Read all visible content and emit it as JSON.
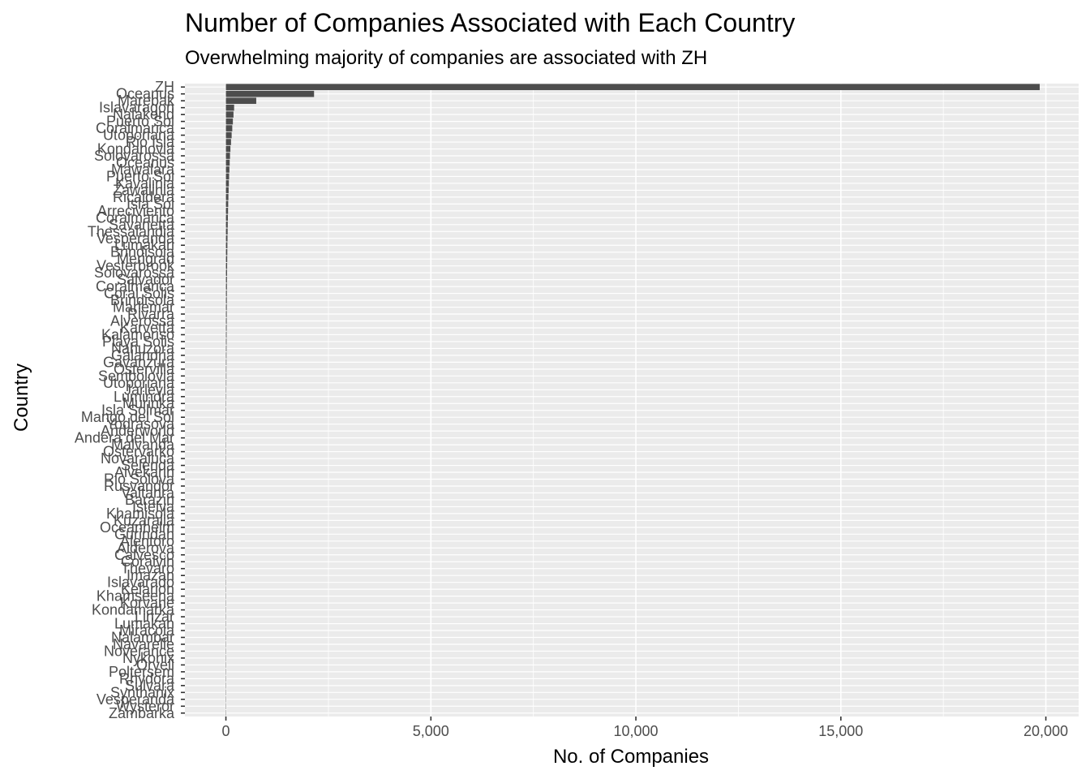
{
  "chart_data": {
    "type": "bar",
    "orientation": "horizontal",
    "title": "Number of Companies Associated with Each Country",
    "subtitle": "Overwhelming majority of companies are associated with ZH",
    "xlabel": "No. of Companies",
    "ylabel": "Country",
    "xlim": [
      -1000,
      20800
    ],
    "x_ticks": [
      0,
      5000,
      10000,
      15000,
      20000
    ],
    "x_tick_labels": [
      "0",
      "5,000",
      "10,000",
      "15,000",
      "20,000"
    ],
    "grid": true,
    "bar_color": "#4d4d4d",
    "panel_color": "#ebebeb",
    "categories": [
      "ZH",
      "Oceanus",
      "Marebak",
      "Islavaragon",
      "Nalakond",
      "Puerto Sol",
      "Coralmarica",
      "Utoporiana",
      "Rio Isla",
      "Kondanovia",
      "Solovarossa",
      "Oceanus",
      "Mawalara",
      "Puerto Sol",
      "Kavalinia",
      "Zawalinia",
      "Ricaldera",
      "Isla Sol",
      "Arreciviento",
      "Coralmarica",
      "Savanetta",
      "Thessalandia",
      "Vesperanda",
      "Lumakari",
      "Brindisola",
      "Merigrad",
      "Vesterbrook",
      "Solovarossa",
      "Salvador",
      "Coralmarica",
      "Coral Solis",
      "Brindisola",
      "Marlemar",
      "Rivarra",
      "Alverossa",
      "Karvetta",
      "Kalamoriso",
      "Playa Solis",
      "Nahuzora",
      "Galandria",
      "Gavanzura",
      "Ostervilla",
      "Sembolovia",
      "Utoporiana",
      "Jarlevia",
      "Lumindra",
      "Murinka",
      "Isla Solmar",
      "Mango del Sol",
      "Yodrasova",
      "Anderworld",
      "Andera del Mar",
      "Malvanda",
      "Ostervarko",
      "Novaraluca",
      "Selenda",
      "Alvekarin",
      "Rio Solova",
      "Rusvandor",
      "Valtanra",
      "Barazin",
      "Istelva",
      "Khamisola",
      "Kuzaralia",
      "Oceanhelm",
      "Gurindah",
      "Alentoro",
      "Alderova",
      "Calvesco",
      "Coralvin",
      "Thevaro",
      "Imazan",
      "Islavarado",
      "Kelarion",
      "Khamseena",
      "Korvane",
      "Kondamarka",
      "Linzar",
      "Lumakan",
      "Miracola",
      "Nalambar",
      "Navarelle",
      "Noverance",
      "Nykonix",
      "Orvell",
      "Poltersem",
      "Rhydora",
      "Sulvara",
      "Synthanix",
      "Vesperanda",
      "Wysteror",
      "Zambarka"
    ],
    "values": [
      19850,
      2150,
      740,
      200,
      185,
      170,
      155,
      140,
      125,
      110,
      100,
      92,
      85,
      78,
      72,
      66,
      61,
      56,
      52,
      48,
      45,
      42,
      39,
      36,
      34,
      32,
      30,
      28,
      26,
      25,
      23,
      22,
      21,
      20,
      19,
      18,
      17,
      16,
      15,
      14,
      13,
      12,
      12,
      11,
      10,
      10,
      9,
      9,
      8,
      8,
      7,
      7,
      7,
      6,
      6,
      6,
      5,
      5,
      5,
      5,
      4,
      4,
      4,
      4,
      3,
      3,
      3,
      3,
      3,
      2,
      2,
      2,
      2,
      2,
      2,
      2,
      2,
      1,
      1,
      1,
      1,
      1,
      1,
      1,
      1,
      1,
      1,
      1,
      1,
      1,
      1,
      1
    ]
  }
}
